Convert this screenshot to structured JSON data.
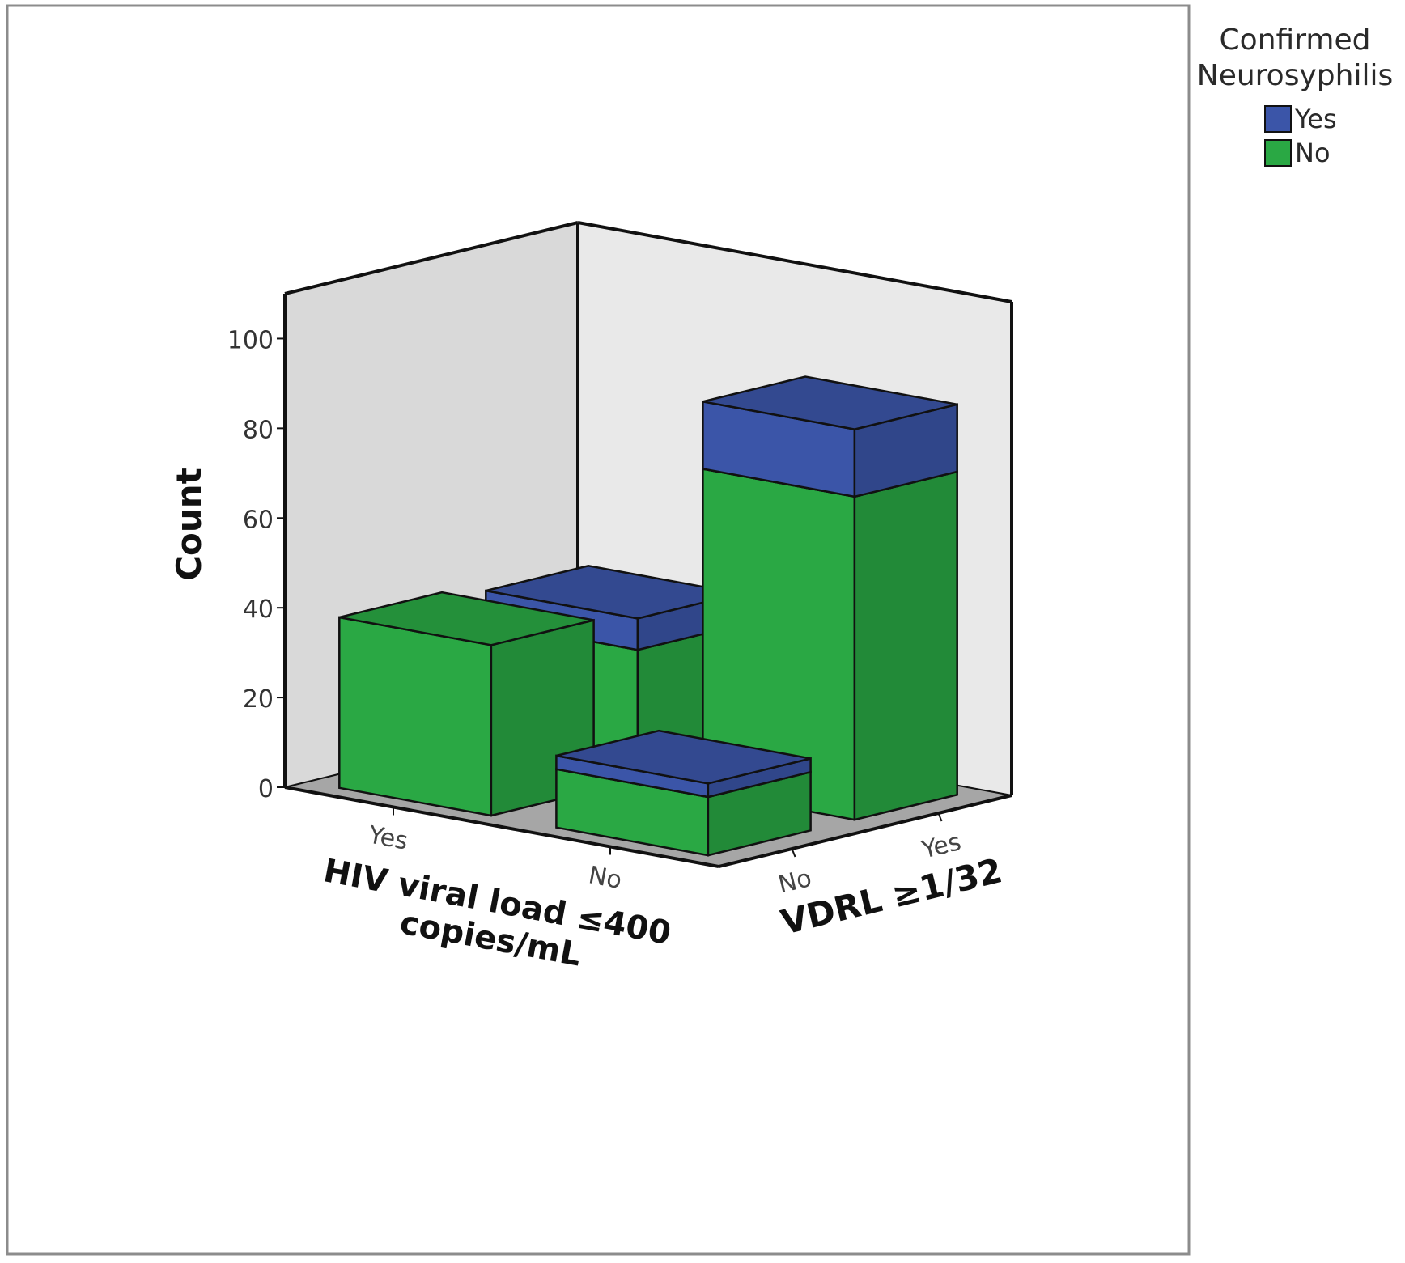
{
  "chart_data": {
    "type": "bar",
    "subtype": "3d-clustered-stacked",
    "title": "",
    "ylabel": "Count",
    "xlabel": "HIV viral load ≤400 copies/mL",
    "zlabel": "VDRL ≥1/32",
    "x_categories": [
      "Yes",
      "No"
    ],
    "z_categories": [
      "No",
      "Yes"
    ],
    "ylim": [
      0,
      110
    ],
    "yticks": [
      0,
      20,
      40,
      60,
      80,
      100
    ],
    "grid": false,
    "legend": {
      "title": "Confirmed Neurosyphilis",
      "position": "top-right",
      "items": [
        {
          "label": "Yes",
          "color": "#3b55a8"
        },
        {
          "label": "No",
          "color": "#2aa844"
        }
      ]
    },
    "series": [
      {
        "name": "Yes",
        "color": "#3b55a8",
        "values": [
          [
            0,
            7
          ],
          [
            3,
            15
          ]
        ]
      },
      {
        "name": "No",
        "color": "#2aa844",
        "values": [
          [
            38,
            29
          ],
          [
            13,
            72
          ]
        ]
      }
    ],
    "series_note_order": "values[x_index][z_index]"
  }
}
